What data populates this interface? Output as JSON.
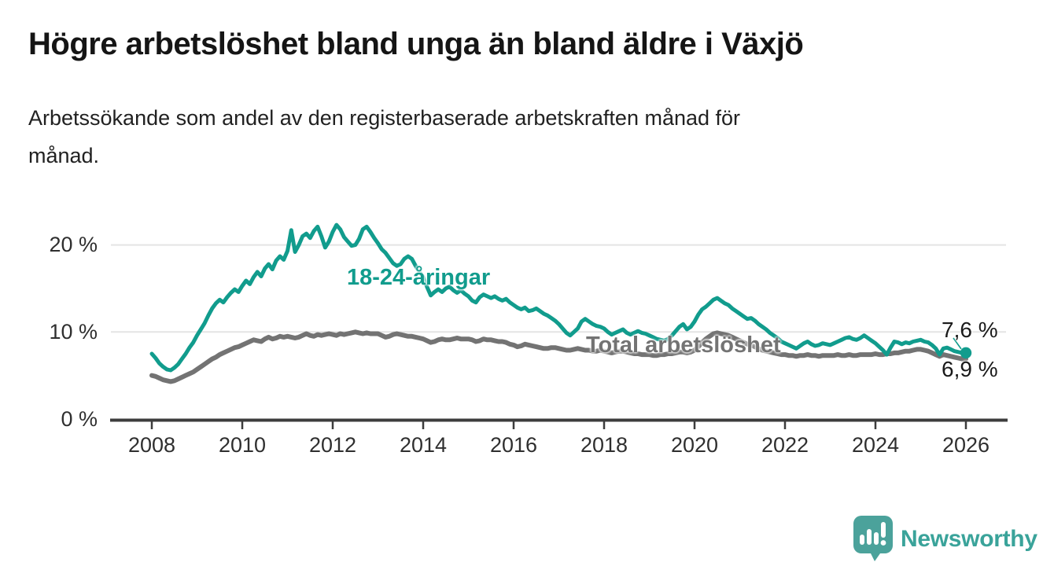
{
  "header": {
    "title": "Högre arbetslöshet bland unga än bland äldre i Växjö",
    "subtitle_lines": [
      "Arbetssökande som andel av den registerbaserade arbetskraften månad för",
      "månad."
    ]
  },
  "chart_data": {
    "type": "line",
    "title": "Högre arbetslöshet bland unga än bland äldre i Växjö",
    "subtitle": "Arbetssökande som andel av den registerbaserade arbetskraften månad för månad.",
    "unit": "%",
    "x_start_year": 2008,
    "x_frequency": "monthly",
    "x_tick_labels": [
      "2008",
      "2010",
      "2012",
      "2014",
      "2016",
      "2018",
      "2020",
      "2022",
      "2024",
      "2026"
    ],
    "y_ticks": [
      {
        "label": "0 %",
        "value": 0
      },
      {
        "label": "10 %",
        "value": 10
      },
      {
        "label": "20 %",
        "value": 20
      }
    ],
    "y_range": [
      0,
      23.5
    ],
    "gridlines": "horizontal",
    "legend_position": "inline-labels",
    "series": [
      {
        "name": "Total arbetslöshet",
        "color": "#737373",
        "end_label": "6,9 %",
        "end_value": 6.9,
        "values": [
          5.0,
          4.9,
          4.7,
          4.5,
          4.4,
          4.3,
          4.4,
          4.6,
          4.8,
          5.0,
          5.2,
          5.4,
          5.7,
          6.0,
          6.3,
          6.6,
          6.9,
          7.1,
          7.4,
          7.6,
          7.8,
          8.0,
          8.2,
          8.3,
          8.5,
          8.7,
          8.9,
          9.1,
          9.0,
          8.9,
          9.2,
          9.4,
          9.2,
          9.3,
          9.5,
          9.4,
          9.5,
          9.4,
          9.3,
          9.4,
          9.6,
          9.8,
          9.6,
          9.5,
          9.7,
          9.6,
          9.7,
          9.8,
          9.7,
          9.6,
          9.8,
          9.7,
          9.8,
          9.9,
          10.0,
          9.9,
          9.8,
          9.9,
          9.8,
          9.8,
          9.8,
          9.6,
          9.4,
          9.5,
          9.7,
          9.8,
          9.7,
          9.6,
          9.5,
          9.5,
          9.4,
          9.3,
          9.2,
          9.0,
          8.8,
          8.9,
          9.1,
          9.2,
          9.1,
          9.1,
          9.2,
          9.3,
          9.2,
          9.2,
          9.2,
          9.1,
          8.9,
          9.0,
          9.2,
          9.1,
          9.1,
          9.0,
          8.9,
          8.9,
          8.8,
          8.6,
          8.5,
          8.3,
          8.4,
          8.6,
          8.5,
          8.4,
          8.3,
          8.2,
          8.1,
          8.1,
          8.2,
          8.2,
          8.1,
          8.0,
          7.9,
          7.9,
          8.0,
          8.1,
          8.0,
          7.9,
          7.9,
          7.8,
          7.8,
          7.9,
          7.8,
          7.7,
          7.6,
          7.7,
          7.8,
          7.8,
          7.7,
          7.6,
          7.5,
          7.5,
          7.4,
          7.4,
          7.4,
          7.3,
          7.3,
          7.4,
          7.4,
          7.5,
          7.5,
          7.6,
          7.7,
          7.7,
          7.6,
          7.7,
          7.9,
          8.3,
          8.8,
          9.2,
          9.5,
          9.8,
          9.9,
          9.8,
          9.7,
          9.6,
          9.4,
          9.2,
          9.0,
          8.8,
          8.6,
          8.5,
          8.3,
          8.1,
          7.9,
          7.8,
          7.7,
          7.6,
          7.5,
          7.4,
          7.4,
          7.3,
          7.3,
          7.2,
          7.3,
          7.3,
          7.4,
          7.3,
          7.3,
          7.2,
          7.3,
          7.3,
          7.3,
          7.3,
          7.4,
          7.3,
          7.3,
          7.4,
          7.3,
          7.3,
          7.4,
          7.4,
          7.4,
          7.4,
          7.5,
          7.4,
          7.4,
          7.5,
          7.5,
          7.6,
          7.6,
          7.7,
          7.8,
          7.8,
          7.9,
          8.0,
          8.0,
          7.9,
          7.8,
          7.6,
          7.4,
          7.2,
          7.4,
          7.3,
          7.2,
          7.1,
          7.0,
          6.9,
          6.9
        ]
      },
      {
        "name": "18-24-åringar",
        "color": "#119c8d",
        "end_label": "7,6 %",
        "end_value": 7.6,
        "values": [
          7.5,
          7.0,
          6.4,
          6.0,
          5.7,
          5.6,
          5.9,
          6.3,
          6.9,
          7.5,
          8.2,
          8.8,
          9.6,
          10.3,
          11.0,
          11.9,
          12.7,
          13.3,
          13.7,
          13.4,
          14.0,
          14.5,
          14.9,
          14.6,
          15.3,
          15.9,
          15.5,
          16.3,
          16.9,
          16.4,
          17.3,
          17.8,
          17.2,
          18.2,
          18.7,
          18.3,
          19.3,
          21.7,
          19.2,
          20.0,
          21.0,
          21.3,
          20.8,
          21.6,
          22.1,
          21.0,
          19.7,
          20.4,
          21.5,
          22.3,
          21.8,
          20.9,
          20.4,
          19.9,
          20.0,
          20.7,
          21.8,
          22.1,
          21.5,
          20.8,
          20.2,
          19.5,
          19.1,
          18.5,
          17.9,
          17.6,
          17.8,
          18.4,
          18.7,
          18.4,
          17.6,
          16.9,
          16.3,
          15.2,
          14.2,
          14.6,
          14.9,
          14.6,
          15.0,
          15.2,
          14.8,
          14.5,
          14.8,
          14.4,
          14.1,
          13.6,
          13.4,
          14.0,
          14.3,
          14.1,
          13.9,
          14.1,
          13.8,
          13.6,
          13.8,
          13.4,
          13.1,
          12.8,
          12.6,
          12.8,
          12.4,
          12.5,
          12.7,
          12.4,
          12.1,
          11.9,
          11.6,
          11.3,
          10.9,
          10.4,
          9.9,
          9.6,
          10.0,
          10.4,
          11.2,
          11.5,
          11.2,
          10.9,
          10.7,
          10.6,
          10.4,
          10.0,
          9.7,
          9.9,
          10.1,
          10.3,
          9.9,
          9.7,
          9.9,
          10.1,
          9.9,
          9.8,
          9.6,
          9.4,
          9.2,
          9.1,
          9.0,
          9.2,
          9.6,
          10.1,
          10.6,
          10.9,
          10.3,
          10.6,
          11.2,
          12.0,
          12.6,
          12.9,
          13.3,
          13.7,
          13.9,
          13.6,
          13.3,
          13.1,
          12.7,
          12.4,
          12.1,
          11.8,
          11.5,
          11.6,
          11.3,
          10.9,
          10.6,
          10.3,
          9.9,
          9.6,
          9.3,
          8.9,
          8.7,
          8.5,
          8.3,
          8.1,
          8.4,
          8.7,
          8.9,
          8.6,
          8.4,
          8.5,
          8.7,
          8.6,
          8.5,
          8.7,
          8.9,
          9.1,
          9.3,
          9.4,
          9.2,
          9.1,
          9.3,
          9.6,
          9.3,
          9.0,
          8.7,
          8.3,
          7.9,
          7.4,
          8.2,
          8.9,
          8.8,
          8.6,
          8.8,
          8.7,
          8.9,
          9.0,
          9.1,
          8.9,
          8.8,
          8.5,
          8.1,
          7.4,
          8.1,
          8.2,
          8.0,
          7.8,
          7.7,
          7.6,
          7.6
        ]
      }
    ]
  },
  "footer": {
    "brand": "Newsworthy"
  },
  "colors": {
    "youth_line": "#119c8d",
    "total_line": "#737373",
    "gridline": "#e4e4e4",
    "axis": "#3d3d3d",
    "brand_teal": "#3aa39a",
    "brand_bubble": "#4ba29b"
  }
}
